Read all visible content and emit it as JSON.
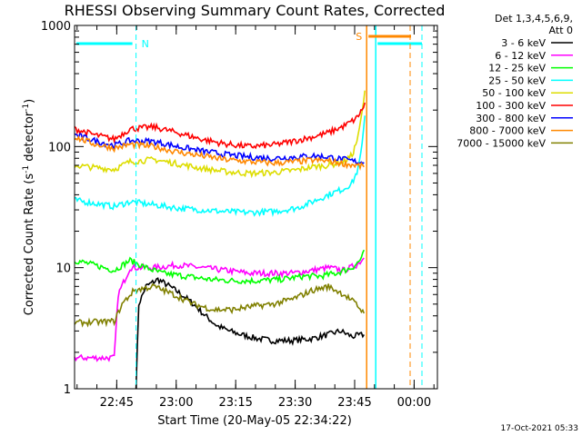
{
  "chart_data": {
    "type": "line",
    "title": "RHESSI Observing Summary Count Rates, Corrected",
    "xlabel": "Start Time (20-May-05 22:34:22)",
    "ylabel_main": "Corrected Count Rate (s",
    "ylabel_sup1": "-1",
    "ylabel_mid": " detector",
    "ylabel_sup2": "-1",
    "ylabel_end": ")",
    "ylim": [
      1,
      1000
    ],
    "yscale": "log",
    "y_ticks": [
      {
        "value": 1,
        "label": "1"
      },
      {
        "value": 10,
        "label": "10"
      },
      {
        "value": 100,
        "label": "100"
      },
      {
        "value": 1000,
        "label": "1000"
      }
    ],
    "x_ticks": [
      {
        "minutes": 10.63,
        "label": "22:45"
      },
      {
        "minutes": 25.63,
        "label": "23:00"
      },
      {
        "minutes": 40.63,
        "label": "23:15"
      },
      {
        "minutes": 55.63,
        "label": "23:30"
      },
      {
        "minutes": 70.63,
        "label": "23:45"
      },
      {
        "minutes": 85.63,
        "label": "00:00"
      }
    ],
    "xlim_minutes": [
      0,
      91.5
    ],
    "legend": {
      "header1": "Det 1,3,4,5,6,9,",
      "header2": "Att 0",
      "placement": "right"
    },
    "series": [
      {
        "name": "3 - 6 keV",
        "color": "#000000",
        "points": [
          [
            15.5,
            1
          ],
          [
            16.2,
            5
          ],
          [
            18,
            7
          ],
          [
            21,
            8
          ],
          [
            24,
            7
          ],
          [
            27,
            6
          ],
          [
            30,
            5
          ],
          [
            33,
            4
          ],
          [
            36,
            3.3
          ],
          [
            39,
            3
          ],
          [
            42,
            2.8
          ],
          [
            46,
            2.6
          ],
          [
            50,
            2.5
          ],
          [
            55,
            2.5
          ],
          [
            60,
            2.6
          ],
          [
            64,
            2.8
          ],
          [
            67,
            3
          ],
          [
            70,
            2.7
          ],
          [
            73,
            2.8
          ]
        ]
      },
      {
        "name": "6 - 12 keV",
        "color": "#ff00ff",
        "points": [
          [
            0,
            1.8
          ],
          [
            10,
            1.8
          ],
          [
            11,
            6
          ],
          [
            14,
            10
          ],
          [
            20,
            10
          ],
          [
            26,
            10.5
          ],
          [
            32,
            10
          ],
          [
            38,
            9.5
          ],
          [
            44,
            9
          ],
          [
            50,
            9
          ],
          [
            55,
            9
          ],
          [
            60,
            9.5
          ],
          [
            64,
            10
          ],
          [
            68,
            9.5
          ],
          [
            71,
            10.5
          ],
          [
            73,
            12
          ]
        ]
      },
      {
        "name": "12 - 25 keV",
        "color": "#00ff00",
        "points": [
          [
            0,
            11.5
          ],
          [
            5,
            10.5
          ],
          [
            10,
            9.5
          ],
          [
            14,
            11.5
          ],
          [
            18,
            10
          ],
          [
            22,
            9
          ],
          [
            28,
            8.5
          ],
          [
            34,
            8
          ],
          [
            40,
            7.8
          ],
          [
            46,
            7.8
          ],
          [
            52,
            8
          ],
          [
            58,
            8.5
          ],
          [
            62,
            8.5
          ],
          [
            66,
            9
          ],
          [
            70,
            10
          ],
          [
            72,
            11.5
          ],
          [
            73,
            14
          ]
        ]
      },
      {
        "name": "25 - 50 keV",
        "color": "#00ffff",
        "points": [
          [
            0,
            36
          ],
          [
            5,
            34
          ],
          [
            10,
            32
          ],
          [
            14,
            35
          ],
          [
            20,
            33
          ],
          [
            26,
            31
          ],
          [
            32,
            30
          ],
          [
            38,
            29
          ],
          [
            44,
            28.5
          ],
          [
            50,
            29
          ],
          [
            56,
            31
          ],
          [
            60,
            35
          ],
          [
            64,
            40
          ],
          [
            68,
            45
          ],
          [
            70,
            50
          ],
          [
            71.5,
            65
          ],
          [
            72.5,
            100
          ],
          [
            73.2,
            180
          ]
        ]
      },
      {
        "name": "50 - 100 keV",
        "color": "#dddd00",
        "points": [
          [
            0,
            70
          ],
          [
            5,
            67
          ],
          [
            10,
            65
          ],
          [
            14,
            75
          ],
          [
            20,
            78
          ],
          [
            26,
            72
          ],
          [
            32,
            66
          ],
          [
            38,
            62
          ],
          [
            44,
            60
          ],
          [
            50,
            61
          ],
          [
            56,
            64
          ],
          [
            60,
            68
          ],
          [
            64,
            70
          ],
          [
            68,
            75
          ],
          [
            70,
            85
          ],
          [
            71.5,
            120
          ],
          [
            72.5,
            190
          ],
          [
            73.2,
            290
          ]
        ]
      },
      {
        "name": "100 - 300 keV",
        "color": "#ff0000",
        "points": [
          [
            0,
            140
          ],
          [
            5,
            125
          ],
          [
            10,
            115
          ],
          [
            14,
            140
          ],
          [
            20,
            145
          ],
          [
            26,
            130
          ],
          [
            32,
            115
          ],
          [
            38,
            105
          ],
          [
            44,
            100
          ],
          [
            50,
            103
          ],
          [
            56,
            112
          ],
          [
            60,
            120
          ],
          [
            64,
            130
          ],
          [
            68,
            148
          ],
          [
            71,
            170
          ],
          [
            72.5,
            200
          ],
          [
            73.2,
            230
          ]
        ]
      },
      {
        "name": "300 - 800 keV",
        "color": "#0000ff",
        "points": [
          [
            0,
            125
          ],
          [
            5,
            112
          ],
          [
            10,
            102
          ],
          [
            14,
            112
          ],
          [
            20,
            110
          ],
          [
            26,
            100
          ],
          [
            32,
            92
          ],
          [
            38,
            86
          ],
          [
            44,
            82
          ],
          [
            50,
            80
          ],
          [
            56,
            82
          ],
          [
            60,
            84
          ],
          [
            64,
            82
          ],
          [
            68,
            78
          ],
          [
            71,
            75
          ],
          [
            73,
            74
          ]
        ]
      },
      {
        "name": "800 - 7000 keV",
        "color": "#ff8800",
        "points": [
          [
            0,
            120
          ],
          [
            5,
            105
          ],
          [
            10,
            97
          ],
          [
            14,
            104
          ],
          [
            20,
            100
          ],
          [
            26,
            90
          ],
          [
            32,
            84
          ],
          [
            38,
            78
          ],
          [
            44,
            75
          ],
          [
            50,
            73
          ],
          [
            56,
            75
          ],
          [
            60,
            77
          ],
          [
            64,
            76
          ],
          [
            68,
            72
          ],
          [
            71,
            70
          ],
          [
            73,
            68
          ]
        ]
      },
      {
        "name": "7000 - 15000 keV",
        "color": "#808000",
        "points": [
          [
            0,
            3.5
          ],
          [
            10,
            3.6
          ],
          [
            12,
            5
          ],
          [
            15,
            6.5
          ],
          [
            20,
            7
          ],
          [
            25,
            6
          ],
          [
            30,
            5
          ],
          [
            35,
            4.5
          ],
          [
            40,
            4.5
          ],
          [
            45,
            4.8
          ],
          [
            50,
            5
          ],
          [
            55,
            5.5
          ],
          [
            60,
            6.5
          ],
          [
            64,
            7
          ],
          [
            68,
            6
          ],
          [
            71,
            5
          ],
          [
            73,
            4.2
          ]
        ]
      }
    ],
    "annotations": [
      {
        "label": "N",
        "color": "#00ffff",
        "x_minutes": 15.5
      },
      {
        "label": "S",
        "color": "#ff8800",
        "x_minutes": 73.2
      }
    ],
    "timestamp": "17-Oct-2021 05:33"
  }
}
